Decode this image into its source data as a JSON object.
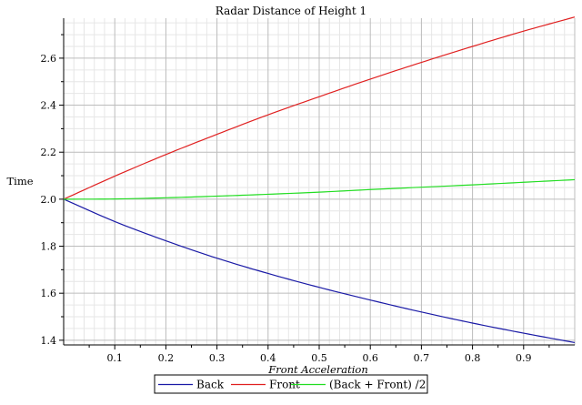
{
  "chart_data": {
    "type": "line",
    "title": "Radar Distance of Height 1",
    "xlabel": "Front Acceleration",
    "ylabel": "Time",
    "xlim": [
      0,
      1
    ],
    "ylim": [
      1.38,
      2.77
    ],
    "x_ticks": [
      0.1,
      0.2,
      0.3,
      0.4,
      0.5,
      0.6,
      0.7,
      0.8,
      0.9
    ],
    "x_tick_labels": [
      "0.1",
      "0.2",
      "0.3",
      "0.4",
      "0.5",
      "0.6",
      "0.7",
      "0.8",
      "0.9"
    ],
    "y_ticks": [
      1.4,
      1.6,
      1.8,
      2.0,
      2.2,
      2.4,
      2.6
    ],
    "y_tick_labels": [
      "1.4",
      "1.6",
      "1.8",
      "2.0",
      "2.2",
      "2.4",
      "2.6"
    ],
    "grid": true,
    "legend_position": "bottom",
    "x": [
      0,
      0.1,
      0.2,
      0.3,
      0.4,
      0.5,
      0.6,
      0.7,
      0.8,
      0.9,
      1.0
    ],
    "series": [
      {
        "name": "Back",
        "color": "#1a1aa6",
        "values": [
          2.0,
          1.905,
          1.823,
          1.749,
          1.684,
          1.625,
          1.571,
          1.52,
          1.473,
          1.43,
          1.39
        ]
      },
      {
        "name": "Front",
        "color": "#e02020",
        "values": [
          2.0,
          2.098,
          2.19,
          2.276,
          2.359,
          2.436,
          2.511,
          2.582,
          2.65,
          2.715,
          2.775
        ]
      },
      {
        "name": "(Back + Front) /2",
        "color": "#22dd22",
        "values": [
          2.0,
          2.001,
          2.006,
          2.013,
          2.021,
          2.03,
          2.041,
          2.051,
          2.061,
          2.072,
          2.083
        ]
      }
    ]
  }
}
